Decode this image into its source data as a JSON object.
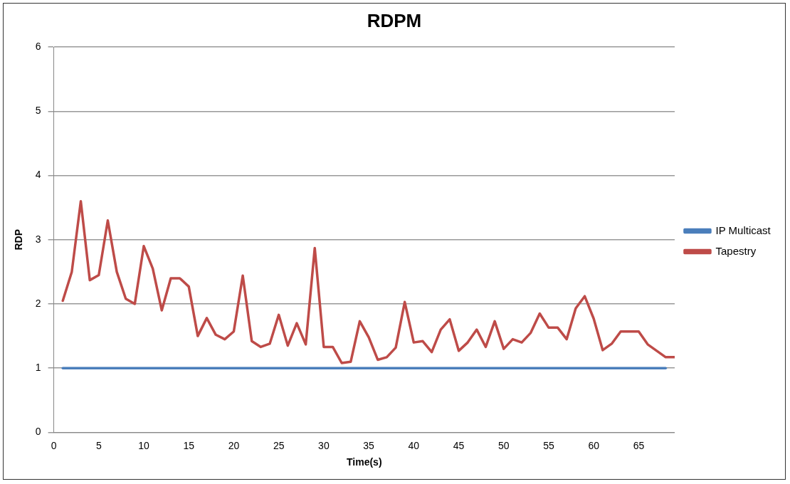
{
  "chart_data": {
    "type": "line",
    "title": "RDPM",
    "xlabel": "Time(s)",
    "ylabel": "RDP",
    "xlim": [
      0,
      69
    ],
    "xticks": [
      0,
      5,
      10,
      15,
      20,
      25,
      30,
      35,
      40,
      45,
      50,
      55,
      60,
      65
    ],
    "ylim": [
      0,
      6
    ],
    "yticks": [
      0,
      1,
      2,
      3,
      4,
      5,
      6
    ],
    "grid": "y",
    "legend": "right",
    "marker": "none",
    "series": [
      {
        "name": "IP Multicast",
        "color": "#4a7ebb",
        "x": [
          1,
          68
        ],
        "values": [
          1,
          1
        ]
      },
      {
        "name": "Tapestry",
        "color": "#be4b48",
        "x": [
          1,
          2,
          3,
          4,
          5,
          6,
          7,
          8,
          9,
          10,
          11,
          12,
          13,
          14,
          15,
          16,
          17,
          18,
          19,
          20,
          21,
          22,
          23,
          24,
          25,
          26,
          27,
          28,
          29,
          30,
          31,
          32,
          33,
          34,
          35,
          36,
          37,
          38,
          39,
          40,
          41,
          42,
          43,
          44,
          45,
          46,
          47,
          48,
          49,
          50,
          51,
          52,
          53,
          54,
          55,
          56,
          57,
          58,
          59,
          60,
          61,
          62,
          63,
          64,
          65,
          66,
          67,
          68,
          69
        ],
        "values": [
          2.05,
          2.5,
          3.6,
          2.37,
          2.45,
          3.3,
          2.5,
          2.08,
          2.0,
          2.9,
          2.55,
          1.9,
          2.4,
          2.4,
          2.27,
          1.5,
          1.78,
          1.52,
          1.45,
          1.57,
          2.44,
          1.42,
          1.33,
          1.38,
          1.83,
          1.35,
          1.7,
          1.37,
          2.87,
          1.33,
          1.33,
          1.08,
          1.1,
          1.73,
          1.48,
          1.13,
          1.17,
          1.32,
          2.03,
          1.4,
          1.42,
          1.25,
          1.6,
          1.76,
          1.27,
          1.4,
          1.6,
          1.33,
          1.73,
          1.3,
          1.45,
          1.4,
          1.55,
          1.85,
          1.63,
          1.63,
          1.45,
          1.93,
          2.12,
          1.77,
          1.28,
          1.38,
          1.57,
          1.57,
          1.57,
          1.37,
          1.27,
          1.17,
          1.17
        ]
      }
    ]
  }
}
